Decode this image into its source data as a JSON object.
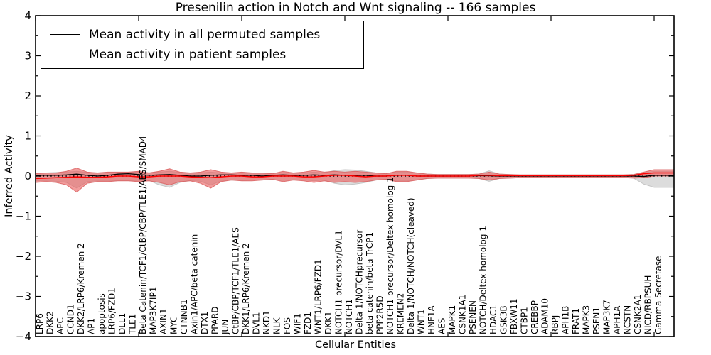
{
  "chart_data": {
    "type": "line",
    "title": "Presenilin action in Notch and Wnt signaling -- 166 samples",
    "xlabel": "Cellular Entities",
    "ylabel": "Inferred Activity",
    "ylim": [
      -4,
      4
    ],
    "y_tick_labels": [
      "4",
      "3",
      "2",
      "1",
      "0",
      "−1",
      "−2",
      "−3",
      "−4"
    ],
    "x_major_tick_every": 10,
    "grid": false,
    "zero_line_style": "dotted",
    "legend_position": "upper left",
    "categories": [
      "LRP6",
      "DKK2",
      "APC",
      "CCND1",
      "DKK2/LRP6/Kremen 2",
      "AP1",
      "apoptosis",
      "LRP6/FZD1",
      "DLL1",
      "TLE1",
      "Beta Catenin/TCF1/CtBP/CBP/TLE1/AES/SMAD4",
      "MAP3K7IP1",
      "AXIN1",
      "MYC",
      "CTNNB1",
      "Axin1/APC/beta catenin",
      "DTX1",
      "PPARD",
      "JUN",
      "CtBP/CBP/TCF1/TLE1/AES",
      "DKK1/LRP6/Kremen 2",
      "DVL1",
      "NKD1",
      "NLK",
      "FOS",
      "WIF1",
      "FZD1",
      "WNT1/LRP6/FZD1",
      "DKK1",
      "NOTCH1 precursor/DVL1",
      "NOTCH1",
      "Delta 1/NOTCHprecursor",
      "beta catenin/beta TrCP1",
      "PPP2R5D",
      "NOTCH1 precursor/Deltex homolog 1",
      "KREMEN2",
      "Delta 1/NOTCH/NOTCH(cleaved)",
      "WNT1",
      "HNF1A",
      "AES",
      "MAPK1",
      "CSNK1A1",
      "PSENEN",
      "NOTCH/Deltex homolog 1",
      "HDAC1",
      "GSK3B",
      "FBXW11",
      "CTBP1",
      "CREBBP",
      "ADAM10",
      "RBPJ",
      "APH1B",
      "FRAT1",
      "MAPK3",
      "PSEN1",
      "MAP3K7",
      "APH1A",
      "NCSTN",
      "CSNK2A1",
      "NICD/RBPSUH",
      "Gamma Secretase"
    ],
    "series": [
      {
        "name": "Mean activity in all permuted samples",
        "color": "#000000",
        "band_color": "#dcdcdc",
        "band_edge_color": "#c4c4c4",
        "values": [
          0.02,
          0.02,
          0.02,
          0.03,
          0.05,
          0.02,
          0.0,
          0.02,
          0.05,
          0.06,
          0.04,
          0.02,
          0.03,
          0.04,
          0.02,
          0.0,
          0.0,
          0.02,
          0.03,
          0.03,
          0.02,
          0.02,
          0.0,
          0.02,
          0.03,
          0.02,
          0.02,
          0.03,
          0.02,
          0.03,
          0.02,
          0.02,
          0.02,
          0.0,
          0.0,
          0.02,
          0.02,
          0.0,
          0.0,
          0.0,
          0.0,
          0.0,
          0.0,
          0.01,
          0.01,
          0.0,
          0.0,
          0.0,
          0.0,
          0.0,
          0.0,
          0.0,
          0.0,
          0.0,
          0.0,
          0.0,
          0.0,
          0.0,
          0.0,
          -0.01,
          0.02
        ],
        "band_upper": [
          0.08,
          0.08,
          0.09,
          0.1,
          0.12,
          0.09,
          0.08,
          0.09,
          0.09,
          0.09,
          0.1,
          0.08,
          0.1,
          0.12,
          0.09,
          0.07,
          0.08,
          0.1,
          0.08,
          0.07,
          0.08,
          0.07,
          0.07,
          0.06,
          0.09,
          0.07,
          0.08,
          0.1,
          0.08,
          0.14,
          0.16,
          0.15,
          0.12,
          0.08,
          0.06,
          0.1,
          0.1,
          0.07,
          0.05,
          0.04,
          0.04,
          0.04,
          0.04,
          0.05,
          0.13,
          0.05,
          0.04,
          0.03,
          0.03,
          0.03,
          0.03,
          0.03,
          0.03,
          0.03,
          0.03,
          0.03,
          0.03,
          0.03,
          0.04,
          0.08,
          0.12
        ],
        "band_lower": [
          -0.12,
          -0.12,
          -0.13,
          -0.16,
          -0.3,
          -0.14,
          -0.12,
          -0.12,
          -0.11,
          -0.11,
          -0.12,
          -0.11,
          -0.22,
          -0.28,
          -0.16,
          -0.11,
          -0.13,
          -0.22,
          -0.12,
          -0.1,
          -0.11,
          -0.1,
          -0.1,
          -0.08,
          -0.11,
          -0.09,
          -0.1,
          -0.12,
          -0.1,
          -0.18,
          -0.22,
          -0.2,
          -0.16,
          -0.1,
          -0.08,
          -0.12,
          -0.12,
          -0.09,
          -0.06,
          -0.05,
          -0.05,
          -0.05,
          -0.05,
          -0.06,
          -0.13,
          -0.06,
          -0.05,
          -0.04,
          -0.04,
          -0.04,
          -0.04,
          -0.04,
          -0.04,
          -0.04,
          -0.04,
          -0.04,
          -0.04,
          -0.04,
          -0.05,
          -0.2,
          -0.28
        ]
      },
      {
        "name": "Mean activity in patient samples",
        "color": "#ff0000",
        "band_color": "#ea5f5f",
        "band_edge_color": "#d95f5f",
        "values": [
          -0.06,
          -0.05,
          -0.04,
          -0.03,
          -0.02,
          -0.03,
          -0.03,
          -0.02,
          0.0,
          0.0,
          -0.02,
          -0.02,
          0.0,
          0.0,
          0.0,
          -0.02,
          -0.03,
          -0.04,
          -0.02,
          0.0,
          0.0,
          -0.02,
          -0.02,
          0.0,
          0.0,
          0.0,
          -0.02,
          -0.02,
          0.0,
          0.02,
          0.02,
          0.0,
          -0.02,
          0.0,
          0.0,
          0.02,
          0.02,
          0.0,
          0.0,
          0.0,
          0.0,
          0.0,
          0.0,
          0.02,
          0.02,
          0.01,
          0.01,
          0.01,
          0.01,
          0.01,
          0.01,
          0.01,
          0.01,
          0.01,
          0.01,
          0.01,
          0.01,
          0.01,
          0.02,
          0.06,
          0.08
        ],
        "band_upper": [
          0.06,
          0.08,
          0.08,
          0.12,
          0.2,
          0.1,
          0.08,
          0.1,
          0.1,
          0.1,
          0.12,
          0.08,
          0.12,
          0.18,
          0.1,
          0.08,
          0.1,
          0.16,
          0.1,
          0.08,
          0.1,
          0.08,
          0.08,
          0.06,
          0.12,
          0.08,
          0.1,
          0.14,
          0.1,
          0.12,
          0.1,
          0.12,
          0.1,
          0.08,
          0.06,
          0.12,
          0.12,
          0.08,
          0.05,
          0.04,
          0.04,
          0.04,
          0.04,
          0.05,
          0.1,
          0.05,
          0.04,
          0.03,
          0.03,
          0.03,
          0.03,
          0.03,
          0.03,
          0.03,
          0.03,
          0.03,
          0.03,
          0.03,
          0.04,
          0.1,
          0.16
        ],
        "band_lower": [
          -0.16,
          -0.14,
          -0.16,
          -0.22,
          -0.4,
          -0.18,
          -0.14,
          -0.14,
          -0.12,
          -0.12,
          -0.14,
          -0.12,
          -0.16,
          -0.22,
          -0.14,
          -0.12,
          -0.18,
          -0.3,
          -0.14,
          -0.1,
          -0.12,
          -0.12,
          -0.1,
          -0.08,
          -0.14,
          -0.1,
          -0.12,
          -0.16,
          -0.12,
          -0.16,
          -0.14,
          -0.16,
          -0.14,
          -0.1,
          -0.08,
          -0.14,
          -0.14,
          -0.1,
          -0.06,
          -0.05,
          -0.05,
          -0.05,
          -0.05,
          -0.06,
          -0.1,
          -0.06,
          -0.05,
          -0.04,
          -0.04,
          -0.04,
          -0.04,
          -0.04,
          -0.04,
          -0.04,
          -0.04,
          -0.04,
          -0.04,
          -0.04,
          -0.05,
          -0.04,
          0.0
        ]
      }
    ]
  }
}
